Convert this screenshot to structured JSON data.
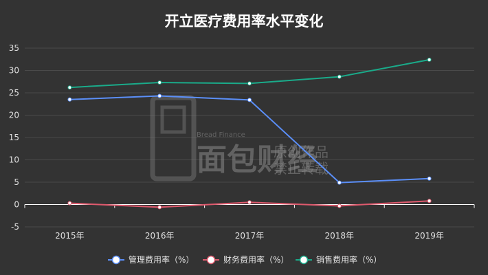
{
  "chart_data": {
    "type": "line",
    "title": "开立医疗费用率水平变化",
    "xlabel": "",
    "ylabel": "",
    "categories": [
      "2015年",
      "2016年",
      "2017年",
      "2018年",
      "2019年"
    ],
    "ylim": [
      -5,
      35
    ],
    "yticks": [
      -5,
      0,
      5,
      10,
      15,
      20,
      25,
      30,
      35
    ],
    "grid": true,
    "legend_position": "bottom",
    "series": [
      {
        "name": "管理费用率（%）",
        "color": "#5b8ff9",
        "values": [
          23.5,
          24.3,
          23.4,
          4.9,
          5.8
        ]
      },
      {
        "name": "财务费用率（%）",
        "color": "#e05a6e",
        "values": [
          0.3,
          -0.6,
          0.5,
          -0.3,
          0.8
        ]
      },
      {
        "name": "销售费用率（%）",
        "color": "#1aab8a",
        "values": [
          26.2,
          27.3,
          27.1,
          28.6,
          32.4
        ]
      }
    ]
  },
  "watermark": {
    "brand_en": "Bread Finance",
    "brand_cn": "面包财经",
    "line1": "原创作品",
    "line2": "禁止转载"
  }
}
